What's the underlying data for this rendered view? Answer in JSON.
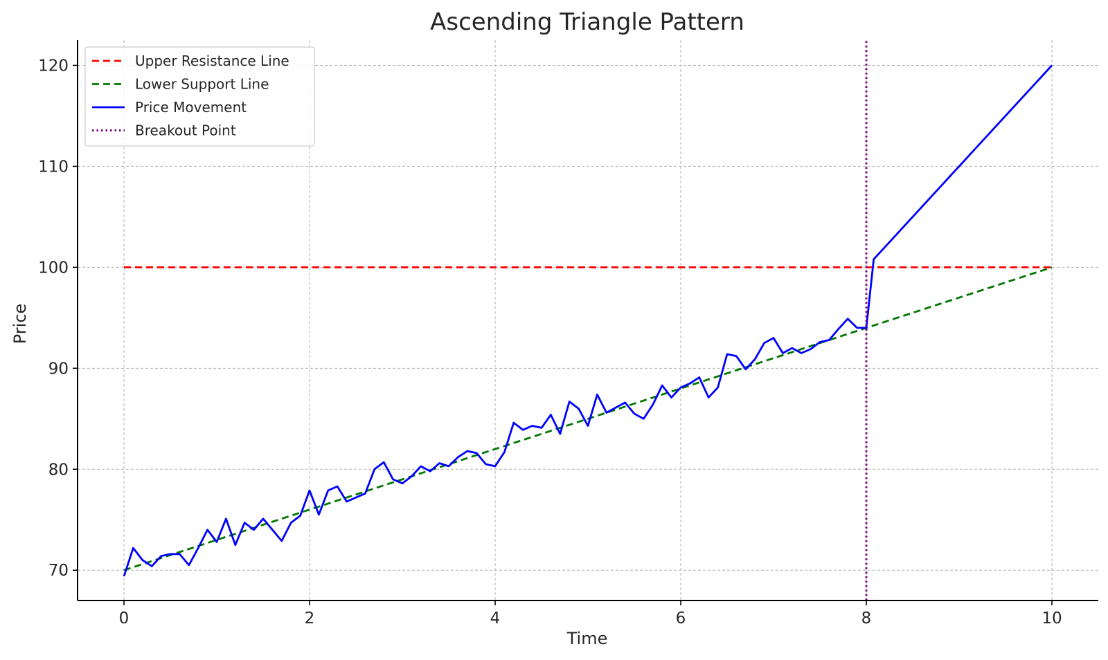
{
  "chart_data": {
    "type": "line",
    "title": "Ascending Triangle Pattern",
    "xlabel": "Time",
    "ylabel": "Price",
    "xlim": [
      -0.5,
      10.5
    ],
    "ylim": [
      67,
      122.5
    ],
    "grid": true,
    "legend_position": "top-left",
    "x_ticks": [
      0,
      2,
      4,
      6,
      8,
      10
    ],
    "y_ticks": [
      70,
      80,
      90,
      100,
      110,
      120
    ],
    "x_tick_labels": [
      "0",
      "2",
      "4",
      "6",
      "8",
      "10"
    ],
    "y_tick_labels": [
      "70",
      "80",
      "90",
      "100",
      "110",
      "120"
    ],
    "series": [
      {
        "name": "Upper Resistance Line",
        "color": "#ff0000",
        "style": "dashed",
        "x": [
          0,
          10
        ],
        "y": [
          100,
          100
        ]
      },
      {
        "name": "Lower Support Line",
        "color": "#007700",
        "style": "dashed",
        "x": [
          0,
          10
        ],
        "y": [
          70,
          100
        ]
      },
      {
        "name": "Price Movement",
        "color": "#0000ff",
        "style": "solid",
        "x": [
          0,
          0.1,
          0.2,
          0.3,
          0.4,
          0.5,
          0.6,
          0.7,
          0.8,
          0.9,
          1.0,
          1.1,
          1.2,
          1.3,
          1.4,
          1.5,
          1.6,
          1.7,
          1.8,
          1.9,
          2.0,
          2.1,
          2.2,
          2.3,
          2.4,
          2.5,
          2.6,
          2.7,
          2.8,
          2.9,
          3.0,
          3.1,
          3.2,
          3.3,
          3.4,
          3.5,
          3.6,
          3.7,
          3.8,
          3.9,
          4.0,
          4.1,
          4.2,
          4.3,
          4.4,
          4.5,
          4.6,
          4.7,
          4.8,
          4.9,
          5.0,
          5.1,
          5.2,
          5.3,
          5.4,
          5.5,
          5.6,
          5.7,
          5.8,
          5.9,
          6.0,
          6.1,
          6.2,
          6.3,
          6.4,
          6.5,
          6.6,
          6.7,
          6.8,
          6.9,
          7.0,
          7.1,
          7.2,
          7.3,
          7.4,
          7.5,
          7.6,
          7.7,
          7.8,
          7.9,
          8.0,
          8.08,
          10.0
        ],
        "y": [
          69.4,
          72.2,
          71.0,
          70.4,
          71.4,
          71.6,
          71.6,
          70.5,
          72.2,
          74.0,
          72.8,
          75.1,
          72.5,
          74.7,
          74.0,
          75.1,
          74.0,
          72.9,
          74.7,
          75.4,
          77.9,
          75.5,
          77.9,
          78.3,
          76.8,
          77.2,
          77.6,
          80.0,
          80.7,
          79.0,
          78.6,
          79.3,
          80.3,
          79.8,
          80.6,
          80.3,
          81.2,
          81.8,
          81.6,
          80.5,
          80.3,
          81.7,
          84.6,
          83.9,
          84.3,
          84.1,
          85.4,
          83.5,
          86.7,
          86.0,
          84.3,
          87.4,
          85.6,
          86.1,
          86.6,
          85.5,
          85.0,
          86.4,
          88.3,
          87.1,
          88.1,
          88.5,
          89.1,
          87.1,
          88.1,
          91.4,
          91.2,
          89.9,
          90.9,
          92.5,
          93.0,
          91.5,
          92.0,
          91.5,
          91.9,
          92.6,
          92.8,
          93.9,
          94.9,
          94.0,
          94.0,
          100.8,
          120.0
        ]
      },
      {
        "name": "Breakout Point",
        "color": "#800080",
        "style": "dotted",
        "x": [
          8,
          8
        ],
        "y": [
          67,
          122.5
        ]
      }
    ]
  }
}
